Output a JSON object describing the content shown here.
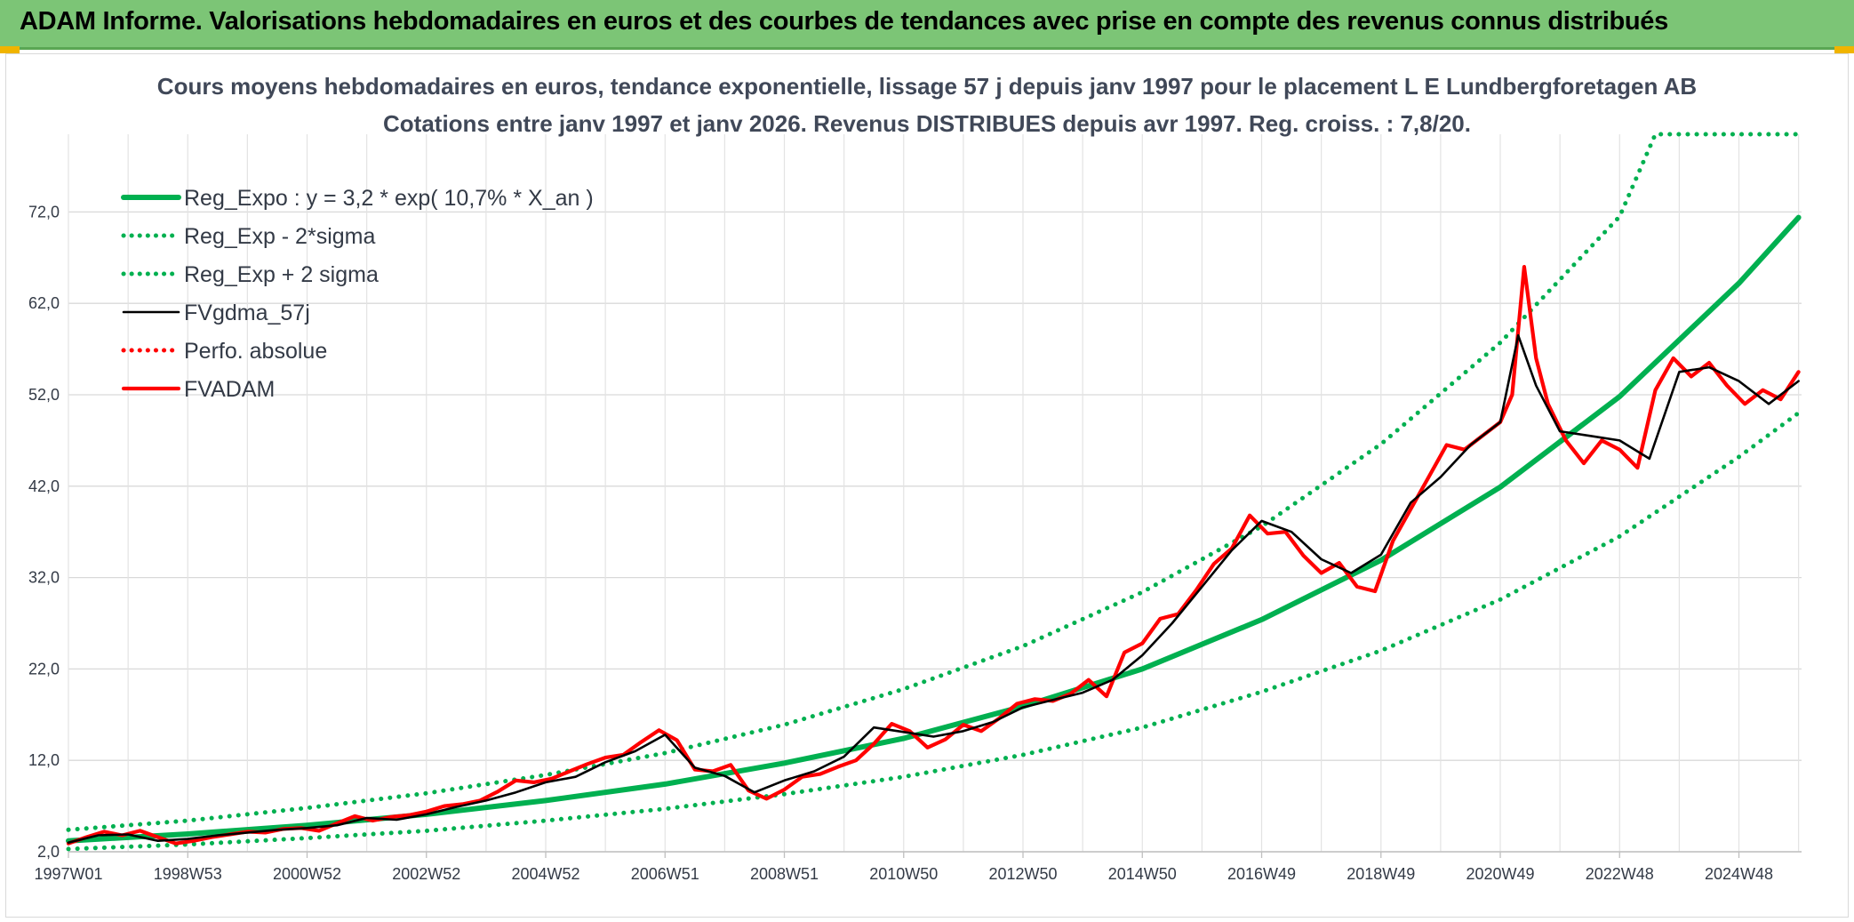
{
  "header": {
    "title": "ADAM Informe. Valorisations hebdomadaires en euros et des courbes de tendances avec prise en compte des revenus connus distribués"
  },
  "colors": {
    "header_bg": "#7cc576",
    "reg": "#00b050",
    "fvgdma": "#000000",
    "fvadam": "#ff0000",
    "perfo": "#ff0000",
    "accent": "#f0b400"
  },
  "chart_data": {
    "type": "line",
    "title": "Cours moyens hebdomadaires en euros, tendance exponentielle, lissage 57 j depuis janv 1997 pour le placement L E Lundbergforetagen AB",
    "subtitle": "Cotations entre janv 1997 et janv 2026. Revenus DISTRIBUES depuis avr 1997. Reg. croiss. : 7,8/20.",
    "xlabel": "",
    "ylabel": "",
    "x_tick_labels": [
      "1997W01",
      "1998W53",
      "2000W52",
      "2002W52",
      "2004W52",
      "2006W51",
      "2008W51",
      "2010W50",
      "2012W50",
      "2014W50",
      "2016W49",
      "2018W49",
      "2020W49",
      "2022W48",
      "2024W48"
    ],
    "x_tick_years": [
      1997.0,
      1999.0,
      2001.0,
      2003.0,
      2005.0,
      2007.0,
      2009.0,
      2011.0,
      2013.0,
      2015.0,
      2017.0,
      2019.0,
      2021.0,
      2023.0,
      2025.0
    ],
    "xlim": [
      1997.0,
      2026.05
    ],
    "y_tick_labels": [
      "2,0",
      "12,0",
      "22,0",
      "32,0",
      "42,0",
      "52,0",
      "62,0",
      "72,0"
    ],
    "y_ticks": [
      2,
      12,
      22,
      32,
      42,
      52,
      62,
      72
    ],
    "ylim": [
      2,
      80.5
    ],
    "grid": true,
    "legend_position": "top-left",
    "series": [
      {
        "name": "Reg_Expo : y = 3,2 * exp( 10,7% *  X_an )",
        "style": "solid-thick",
        "color": "#00b050",
        "x": [
          1997.0,
          1999.0,
          2001.0,
          2003.0,
          2005.0,
          2007.0,
          2009.0,
          2011.0,
          2013.0,
          2015.0,
          2017.0,
          2019.0,
          2021.0,
          2023.0,
          2025.0,
          2026.0
        ],
        "y": [
          3.2,
          3.95,
          4.9,
          6.1,
          7.6,
          9.4,
          11.7,
          14.4,
          17.9,
          22.0,
          27.4,
          33.9,
          41.9,
          51.8,
          64.2,
          71.4
        ]
      },
      {
        "name": "Reg_Exp - 2*sigma",
        "style": "dotted",
        "color": "#00b050",
        "x": [
          1997.0,
          1999.0,
          2001.0,
          2003.0,
          2005.0,
          2007.0,
          2009.0,
          2011.0,
          2013.0,
          2015.0,
          2017.0,
          2019.0,
          2021.0,
          2023.0,
          2025.0,
          2026.0
        ],
        "y": [
          2.3,
          2.8,
          3.5,
          4.3,
          5.4,
          6.7,
          8.3,
          10.2,
          12.6,
          15.6,
          19.5,
          24.0,
          29.6,
          36.5,
          45.2,
          50.0
        ]
      },
      {
        "name": "Reg_Exp + 2 sigma",
        "style": "dotted",
        "color": "#00b050",
        "x": [
          1997.0,
          1999.0,
          2001.0,
          2003.0,
          2005.0,
          2007.0,
          2009.0,
          2011.0,
          2013.0,
          2015.0,
          2017.0,
          2019.0,
          2021.0,
          2023.0,
          2023.6,
          2026.0
        ],
        "y": [
          4.4,
          5.4,
          6.8,
          8.4,
          10.4,
          12.8,
          15.9,
          19.8,
          24.5,
          30.4,
          37.6,
          46.6,
          57.7,
          71.5,
          80.5,
          80.5
        ]
      },
      {
        "name": "FVgdma_57j",
        "style": "solid-thin",
        "color": "#000000",
        "x": [
          1997.0,
          1997.5,
          1998.0,
          1998.5,
          1999.0,
          1999.5,
          2000.0,
          2000.5,
          2001.0,
          2001.5,
          2002.0,
          2002.5,
          2003.0,
          2003.5,
          2004.0,
          2004.5,
          2005.0,
          2005.5,
          2006.0,
          2006.5,
          2007.0,
          2007.5,
          2008.0,
          2008.5,
          2009.0,
          2009.5,
          2010.0,
          2010.5,
          2011.0,
          2011.5,
          2012.0,
          2012.5,
          2013.0,
          2013.5,
          2014.0,
          2014.5,
          2015.0,
          2015.5,
          2016.0,
          2016.5,
          2017.0,
          2017.5,
          2018.0,
          2018.5,
          2019.0,
          2019.5,
          2020.0,
          2020.5,
          2021.0,
          2021.3,
          2021.6,
          2022.0,
          2022.5,
          2023.0,
          2023.5,
          2024.0,
          2024.5,
          2025.0,
          2025.5,
          2026.0
        ],
        "y": [
          3.0,
          3.8,
          3.9,
          3.2,
          3.4,
          3.8,
          4.1,
          4.4,
          4.6,
          4.9,
          5.7,
          5.5,
          6.1,
          6.9,
          7.6,
          8.5,
          9.6,
          10.2,
          11.8,
          13.0,
          14.8,
          11.2,
          10.3,
          8.5,
          9.8,
          10.8,
          12.4,
          15.6,
          15.1,
          14.6,
          15.2,
          16.2,
          17.8,
          18.6,
          19.4,
          20.8,
          23.5,
          27.0,
          31.0,
          35.0,
          38.2,
          37.0,
          34.0,
          32.5,
          34.5,
          40.2,
          43.0,
          46.5,
          49.0,
          58.5,
          53.0,
          48.0,
          47.5,
          47.0,
          45.0,
          54.5,
          55.0,
          53.5,
          51.0,
          53.5
        ]
      },
      {
        "name": "Perfo. absolue",
        "style": "dotted",
        "color": "#ff0000",
        "x": [],
        "y": []
      },
      {
        "name": "FVADAM",
        "style": "solid-thick",
        "color": "#ff0000",
        "x": [
          1997.0,
          1997.3,
          1997.6,
          1997.9,
          1998.2,
          1998.5,
          1998.8,
          1999.1,
          1999.4,
          1999.7,
          2000.0,
          2000.3,
          2000.6,
          2000.9,
          2001.2,
          2001.5,
          2001.8,
          2002.1,
          2002.4,
          2002.7,
          2003.0,
          2003.3,
          2003.6,
          2003.9,
          2004.2,
          2004.5,
          2004.8,
          2005.1,
          2005.4,
          2005.7,
          2006.0,
          2006.3,
          2006.6,
          2006.9,
          2007.2,
          2007.5,
          2007.8,
          2008.1,
          2008.4,
          2008.7,
          2009.0,
          2009.3,
          2009.6,
          2009.9,
          2010.2,
          2010.5,
          2010.8,
          2011.1,
          2011.4,
          2011.7,
          2012.0,
          2012.3,
          2012.6,
          2012.9,
          2013.2,
          2013.5,
          2013.8,
          2014.1,
          2014.4,
          2014.7,
          2015.0,
          2015.3,
          2015.6,
          2015.9,
          2016.2,
          2016.5,
          2016.8,
          2017.1,
          2017.4,
          2017.7,
          2018.0,
          2018.3,
          2018.6,
          2018.9,
          2019.2,
          2019.5,
          2019.8,
          2020.1,
          2020.4,
          2020.7,
          2021.0,
          2021.2,
          2021.4,
          2021.6,
          2021.8,
          2022.1,
          2022.4,
          2022.7,
          2023.0,
          2023.3,
          2023.6,
          2023.9,
          2024.2,
          2024.5,
          2024.8,
          2025.1,
          2025.4,
          2025.7,
          2026.0
        ],
        "y": [
          2.9,
          3.6,
          4.2,
          3.8,
          4.3,
          3.6,
          2.9,
          3.2,
          3.6,
          3.9,
          4.2,
          4.1,
          4.5,
          4.6,
          4.3,
          5.1,
          5.9,
          5.4,
          5.8,
          6.0,
          6.4,
          7.0,
          7.2,
          7.6,
          8.6,
          9.8,
          9.6,
          10.0,
          10.8,
          11.6,
          12.3,
          12.6,
          14.0,
          15.3,
          14.2,
          11.0,
          10.8,
          11.5,
          8.7,
          7.8,
          8.8,
          10.2,
          10.5,
          11.3,
          12.0,
          13.8,
          16.0,
          15.2,
          13.4,
          14.3,
          15.9,
          15.2,
          16.6,
          18.2,
          18.7,
          18.5,
          19.3,
          20.8,
          19.0,
          23.8,
          24.8,
          27.5,
          28.0,
          30.6,
          33.5,
          35.2,
          38.8,
          36.8,
          37.0,
          34.4,
          32.5,
          33.6,
          31.0,
          30.5,
          36.0,
          39.5,
          43.0,
          46.5,
          46.0,
          47.5,
          49.0,
          52.0,
          66.0,
          56.0,
          51.0,
          47.0,
          44.5,
          47.0,
          46.0,
          44.0,
          52.5,
          56.0,
          54.0,
          55.5,
          53.0,
          51.0,
          52.5,
          51.5,
          54.5
        ]
      }
    ]
  }
}
